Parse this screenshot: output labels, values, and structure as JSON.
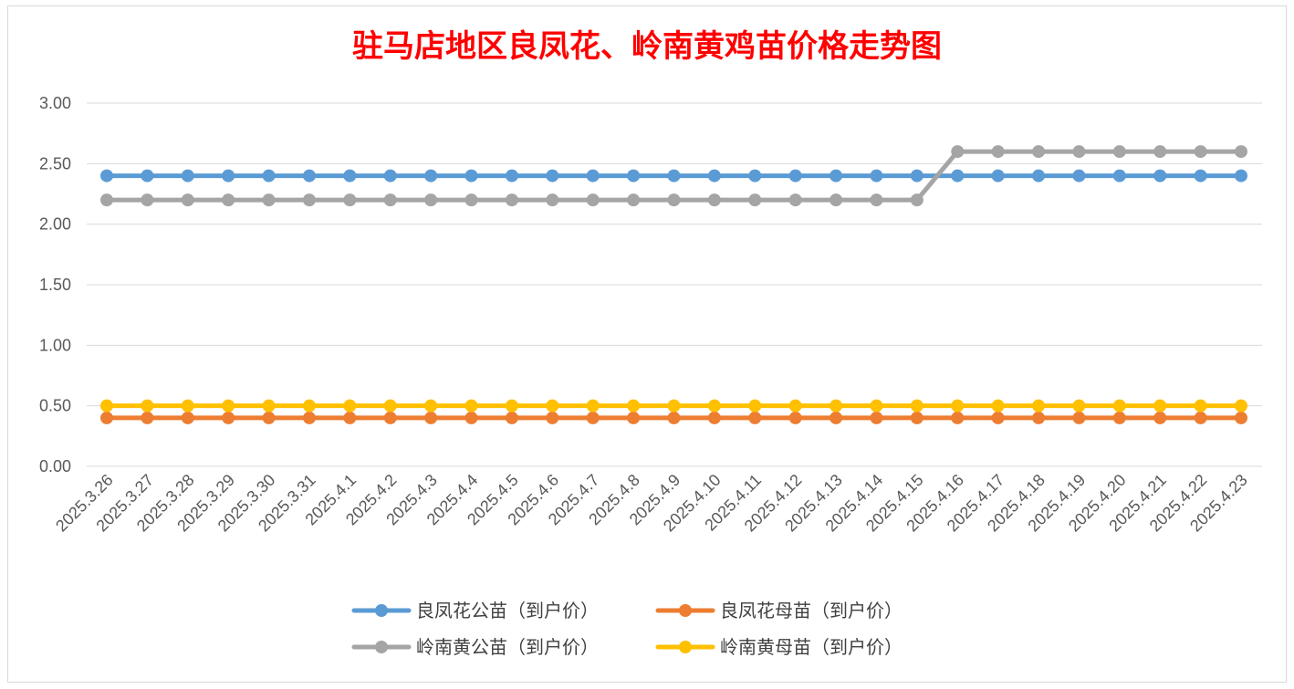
{
  "chart_data": {
    "type": "line",
    "title": "驻马店地区良凤花、岭南黄鸡苗价格走势图",
    "xlabel": "",
    "ylabel": "",
    "ylim": [
      0,
      3
    ],
    "y_ticks": [
      "0.00",
      "0.50",
      "1.00",
      "1.50",
      "2.00",
      "2.50",
      "3.00"
    ],
    "y_tick_values": [
      0,
      0.5,
      1,
      1.5,
      2,
      2.5,
      3
    ],
    "grid": true,
    "legend_position": "bottom",
    "categories": [
      "2025.3.26",
      "2025.3.27",
      "2025.3.28",
      "2025.3.29",
      "2025.3.30",
      "2025.3.31",
      "2025.4.1",
      "2025.4.2",
      "2025.4.3",
      "2025.4.4",
      "2025.4.5",
      "2025.4.6",
      "2025.4.7",
      "2025.4.8",
      "2025.4.9",
      "2025.4.10",
      "2025.4.11",
      "2025.4.12",
      "2025.4.13",
      "2025.4.14",
      "2025.4.15",
      "2025.4.16",
      "2025.4.17",
      "2025.4.18",
      "2025.4.19",
      "2025.4.20",
      "2025.4.21",
      "2025.4.22",
      "2025.4.23"
    ],
    "series": [
      {
        "name": "良凤花公苗（到户价）",
        "color": "#5b9bd5",
        "values": [
          2.4,
          2.4,
          2.4,
          2.4,
          2.4,
          2.4,
          2.4,
          2.4,
          2.4,
          2.4,
          2.4,
          2.4,
          2.4,
          2.4,
          2.4,
          2.4,
          2.4,
          2.4,
          2.4,
          2.4,
          2.4,
          2.4,
          2.4,
          2.4,
          2.4,
          2.4,
          2.4,
          2.4,
          2.4
        ]
      },
      {
        "name": "良凤花母苗（到户价）",
        "color": "#ed7d31",
        "values": [
          0.4,
          0.4,
          0.4,
          0.4,
          0.4,
          0.4,
          0.4,
          0.4,
          0.4,
          0.4,
          0.4,
          0.4,
          0.4,
          0.4,
          0.4,
          0.4,
          0.4,
          0.4,
          0.4,
          0.4,
          0.4,
          0.4,
          0.4,
          0.4,
          0.4,
          0.4,
          0.4,
          0.4,
          0.4
        ]
      },
      {
        "name": "岭南黄公苗（到户价）",
        "color": "#a5a5a5",
        "values": [
          2.2,
          2.2,
          2.2,
          2.2,
          2.2,
          2.2,
          2.2,
          2.2,
          2.2,
          2.2,
          2.2,
          2.2,
          2.2,
          2.2,
          2.2,
          2.2,
          2.2,
          2.2,
          2.2,
          2.2,
          2.2,
          2.6,
          2.6,
          2.6,
          2.6,
          2.6,
          2.6,
          2.6,
          2.6
        ]
      },
      {
        "name": "岭南黄母苗（到户价）",
        "color": "#ffc000",
        "values": [
          0.5,
          0.5,
          0.5,
          0.5,
          0.5,
          0.5,
          0.5,
          0.5,
          0.5,
          0.5,
          0.5,
          0.5,
          0.5,
          0.5,
          0.5,
          0.5,
          0.5,
          0.5,
          0.5,
          0.5,
          0.5,
          0.5,
          0.5,
          0.5,
          0.5,
          0.5,
          0.5,
          0.5,
          0.5
        ]
      }
    ]
  }
}
